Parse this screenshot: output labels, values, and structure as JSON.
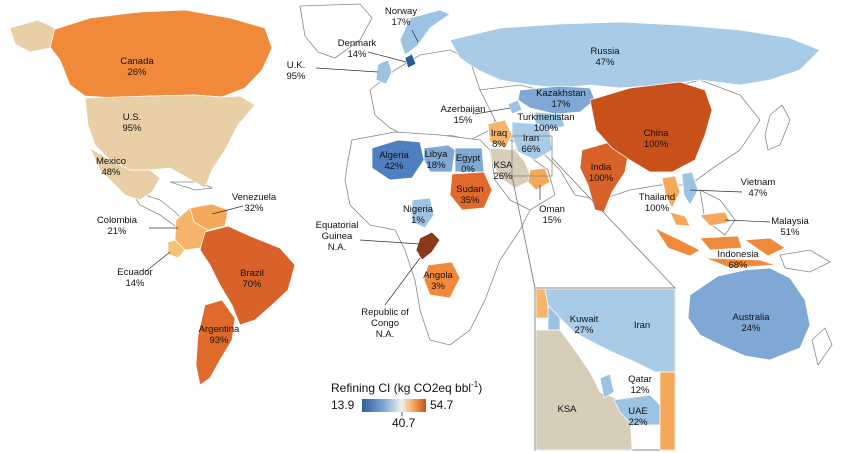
{
  "colors": {
    "low": "#3f6fb0",
    "mid_low": "#9cc3e4",
    "mid": "#f0f0f0",
    "mid_high": "#f6a85a",
    "high": "#c8501a",
    "beige": "#e8cfa6",
    "saudi": "#d7cdb9",
    "dark": "#8a3a1a"
  },
  "legend": {
    "title": "Refining CI (kg CO2eq bbl",
    "superscript": "-1",
    "title_close": ")",
    "min": "13.9",
    "max": "54.7",
    "mid": "40.7"
  },
  "countries": [
    {
      "id": "canada",
      "name": "Canada",
      "pct": "26%",
      "color": "#f08a3a"
    },
    {
      "id": "us",
      "name": "U.S.",
      "pct": "95%",
      "color": "#e8cfa6"
    },
    {
      "id": "mexico",
      "name": "Mexico",
      "pct": "48%",
      "color": "#e8cfa6"
    },
    {
      "id": "venezuela",
      "name": "Venezuela",
      "pct": "32%",
      "color": "#f6a85a"
    },
    {
      "id": "colombia",
      "name": "Colombia",
      "pct": "21%",
      "color": "#f6b56a"
    },
    {
      "id": "ecuador",
      "name": "Ecuador",
      "pct": "14%",
      "color": "#f6c27a"
    },
    {
      "id": "brazil",
      "name": "Brazil",
      "pct": "70%",
      "color": "#d8622a"
    },
    {
      "id": "argentina",
      "name": "Argentina",
      "pct": "93%",
      "color": "#e06a2c"
    },
    {
      "id": "norway",
      "name": "Norway",
      "pct": "17%",
      "color": "#9cc3e4"
    },
    {
      "id": "denmark",
      "name": "Denmark",
      "pct": "14%",
      "color": "#2a5a9a"
    },
    {
      "id": "uk",
      "name": "U.K.",
      "pct": "95%",
      "color": "#9cc3e4"
    },
    {
      "id": "russia",
      "name": "Russia",
      "pct": "47%",
      "color": "#a8cbe8"
    },
    {
      "id": "kazakhstan",
      "name": "Kazakhstan",
      "pct": "17%",
      "color": "#7fa9d4"
    },
    {
      "id": "azerbaijan",
      "name": "Azerbaijan",
      "pct": "15%",
      "color": "#9cc3e4"
    },
    {
      "id": "turkmenistan",
      "name": "Turkmenistan",
      "pct": "100%",
      "color": "#9cc3e4"
    },
    {
      "id": "iraq",
      "name": "Iraq",
      "pct": "8%",
      "color": "#f6b56a"
    },
    {
      "id": "iran",
      "name": "Iran",
      "pct": "66%",
      "color": "#a8cbe8"
    },
    {
      "id": "kuwait",
      "name": "Kuwait",
      "pct": "27%",
      "color": "#9cc3e4"
    },
    {
      "id": "ksa",
      "name": "KSA",
      "pct": "26%",
      "color": "#d7cdb9"
    },
    {
      "id": "oman",
      "name": "Oman",
      "pct": "15%",
      "color": "#f6a85a"
    },
    {
      "id": "qatar",
      "name": "Qatar",
      "pct": "12%",
      "color": "#9cc3e4"
    },
    {
      "id": "uae",
      "name": "UAE",
      "pct": "22%",
      "color": "#9cc3e4"
    },
    {
      "id": "algeria",
      "name": "Algeria",
      "pct": "42%",
      "color": "#4f7fc0"
    },
    {
      "id": "libya",
      "name": "Libya",
      "pct": "18%",
      "color": "#7fa9d4"
    },
    {
      "id": "egypt",
      "name": "Egypt",
      "pct": "0%",
      "color": "#7fa9d4"
    },
    {
      "id": "sudan",
      "name": "Sudan",
      "pct": "35%",
      "color": "#e06a2c"
    },
    {
      "id": "nigeria",
      "name": "Nigeria",
      "pct": "1%",
      "color": "#9cc3e4"
    },
    {
      "id": "eq_guinea",
      "name": "Equatorial",
      "name2": "Guinea",
      "pct": "N.A.",
      "color": "#8a3a1a"
    },
    {
      "id": "congo",
      "name": "Republic of",
      "name2": "Congo",
      "pct": "N.A.",
      "color": "#8a3a1a"
    },
    {
      "id": "angola",
      "name": "Angola",
      "pct": "3%",
      "color": "#f08a3a"
    },
    {
      "id": "india",
      "name": "India",
      "pct": "100%",
      "color": "#d8622a"
    },
    {
      "id": "china",
      "name": "China",
      "pct": "100%",
      "color": "#c8501a"
    },
    {
      "id": "thailand",
      "name": "Thailand",
      "pct": "100%",
      "color": "#f6a85a"
    },
    {
      "id": "vietnam",
      "name": "Vietnam",
      "pct": "47%",
      "color": "#9cc3e4"
    },
    {
      "id": "malaysia",
      "name": "Malaysia",
      "pct": "51%",
      "color": "#f6a85a"
    },
    {
      "id": "indonesia",
      "name": "Indonesia",
      "pct": "68%",
      "color": "#f08a3a"
    },
    {
      "id": "australia",
      "name": "Australia",
      "pct": "24%",
      "color": "#7fa9d4"
    }
  ]
}
